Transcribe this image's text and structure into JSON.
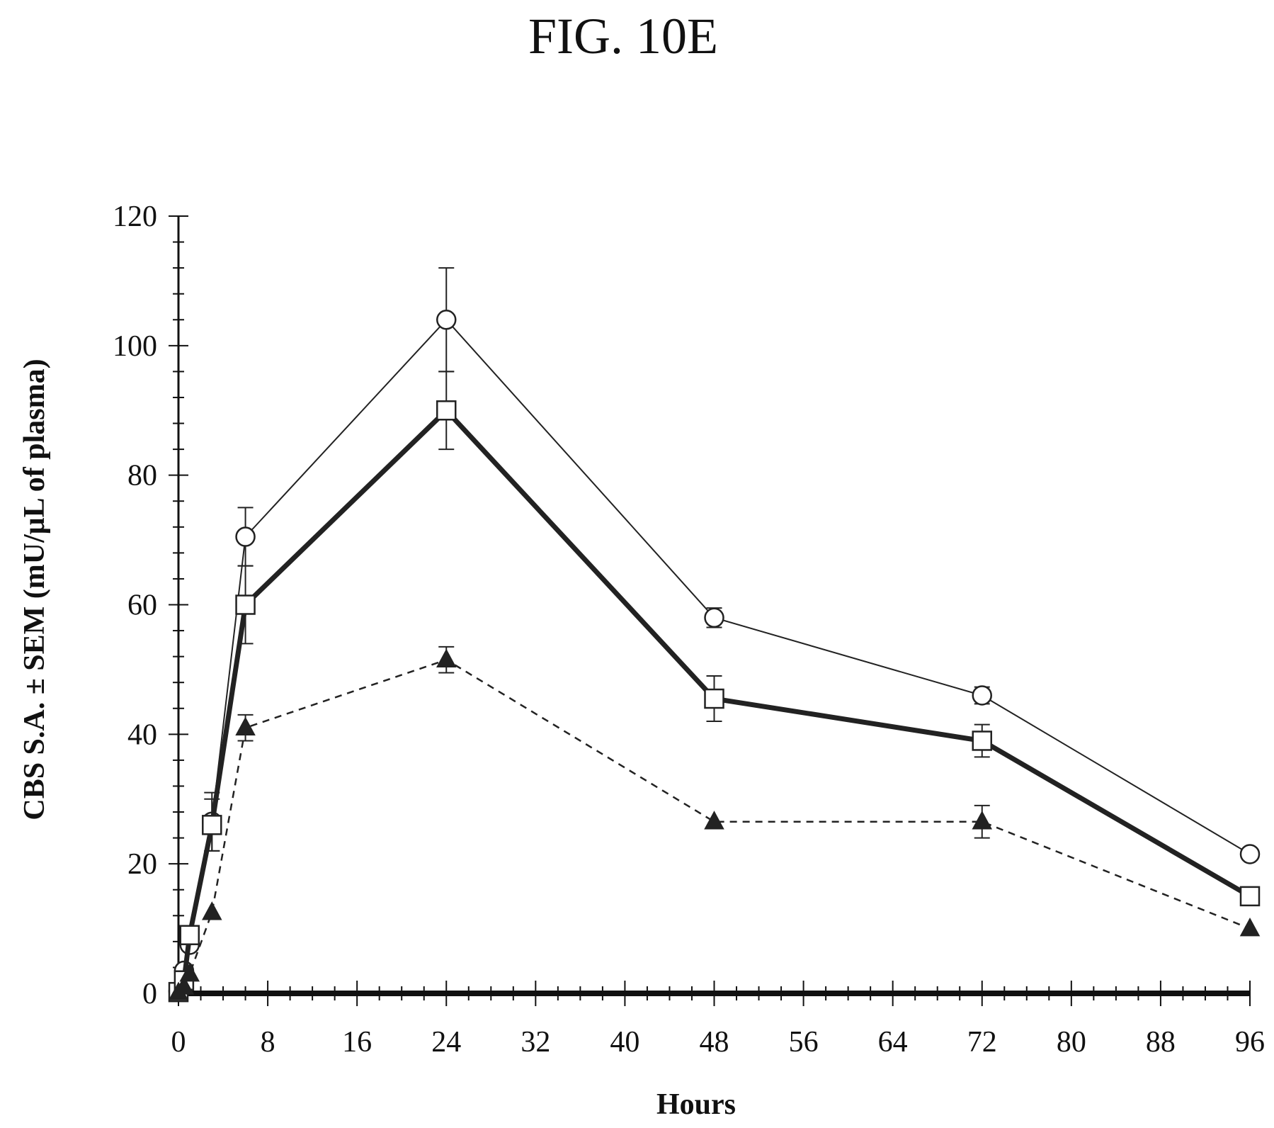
{
  "figure": {
    "title": "FIG. 10E"
  },
  "chart_data": {
    "type": "line",
    "xlabel": "Hours",
    "ylabel": "CBS S.A. ± SEM (mU/μL of plasma)",
    "xlim": [
      0,
      96
    ],
    "ylim": [
      0,
      120
    ],
    "xticks": [
      0,
      8,
      16,
      24,
      32,
      40,
      48,
      56,
      64,
      72,
      80,
      88,
      96
    ],
    "yticks": [
      0,
      20,
      40,
      60,
      80,
      100,
      120
    ],
    "grid": false,
    "legend": "none",
    "series": [
      {
        "marker": "open-circle",
        "line": "thin-solid",
        "color": "#222222",
        "x": [
          0,
          0.5,
          1,
          3,
          6,
          24,
          48,
          72,
          96
        ],
        "y": [
          0.3,
          3.5,
          7.5,
          26.5,
          70.5,
          104,
          58,
          46,
          21.5
        ],
        "err": [
          0,
          0,
          0,
          4.5,
          4.5,
          8,
          1.5,
          1.3,
          0
        ]
      },
      {
        "marker": "open-square",
        "line": "thick-solid",
        "color": "#222222",
        "x": [
          0,
          0.5,
          1,
          3,
          6,
          24,
          48,
          72,
          96
        ],
        "y": [
          0.2,
          2,
          9,
          26,
          60,
          90,
          45.5,
          39,
          15
        ],
        "err": [
          0,
          0,
          0,
          4,
          6,
          6,
          3.5,
          2.5,
          0
        ]
      },
      {
        "marker": "filled-triangle",
        "line": "dashed",
        "color": "#222222",
        "x": [
          0,
          0.5,
          1,
          3,
          6,
          24,
          48,
          72,
          96
        ],
        "y": [
          0.1,
          1,
          3,
          12.5,
          41,
          51.5,
          26.5,
          26.5,
          10
        ],
        "err": [
          0,
          0,
          0,
          0,
          2,
          2,
          0,
          2.5,
          0
        ]
      }
    ]
  }
}
